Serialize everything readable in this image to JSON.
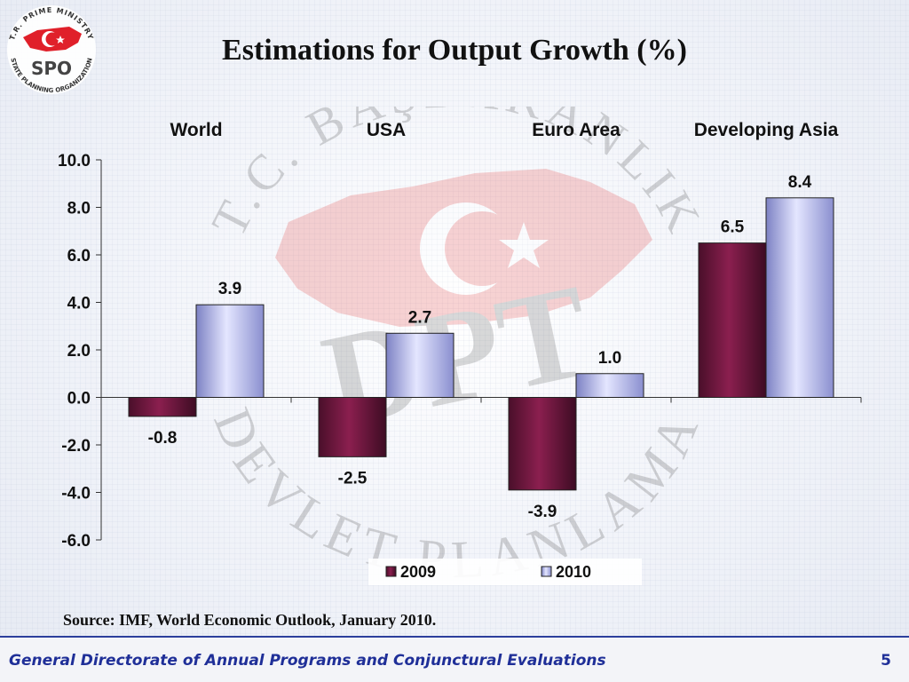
{
  "slide": {
    "title": "Estimations for Output Growth (%)",
    "source": "Source: IMF, World Economic Outlook, January 2010.",
    "footer": "General Directorate of Annual Programs and Conjunctural Evaluations",
    "page_number": "5"
  },
  "logo": {
    "top_text": "T.R. PRIME MINISTRY",
    "bottom_text": "STATE PLANNING ORGANIZATION",
    "center_text": "SPO"
  },
  "watermark": {
    "top_text": "T.C. BAŞBAKANLIK",
    "center_text": "DPT",
    "bottom_text": "DEVLET PLANLAMA"
  },
  "chart_data": {
    "type": "bar",
    "categories": [
      "World",
      "USA",
      "Euro Area",
      "Developing Asia"
    ],
    "series": [
      {
        "name": "2009",
        "values": [
          -0.8,
          -2.5,
          -3.9,
          6.5
        ],
        "color": "#8b1f4f"
      },
      {
        "name": "2010",
        "values": [
          3.9,
          2.7,
          1.0,
          8.4
        ],
        "color": "#b8bce8"
      }
    ],
    "value_labels": {
      "2009": [
        "-0.8",
        "-2.5",
        "-3.9",
        "6.5"
      ],
      "2010": [
        "3.9",
        "2.7",
        "1.0",
        "8.4"
      ]
    },
    "yticks": [
      "10.0",
      "8.0",
      "6.0",
      "4.0",
      "2.0",
      "0.0",
      "-2.0",
      "-4.0",
      "-6.0"
    ],
    "ylim": [
      -6,
      10
    ],
    "category_labels_position": "top",
    "legend_position": "bottom",
    "grid": false
  }
}
